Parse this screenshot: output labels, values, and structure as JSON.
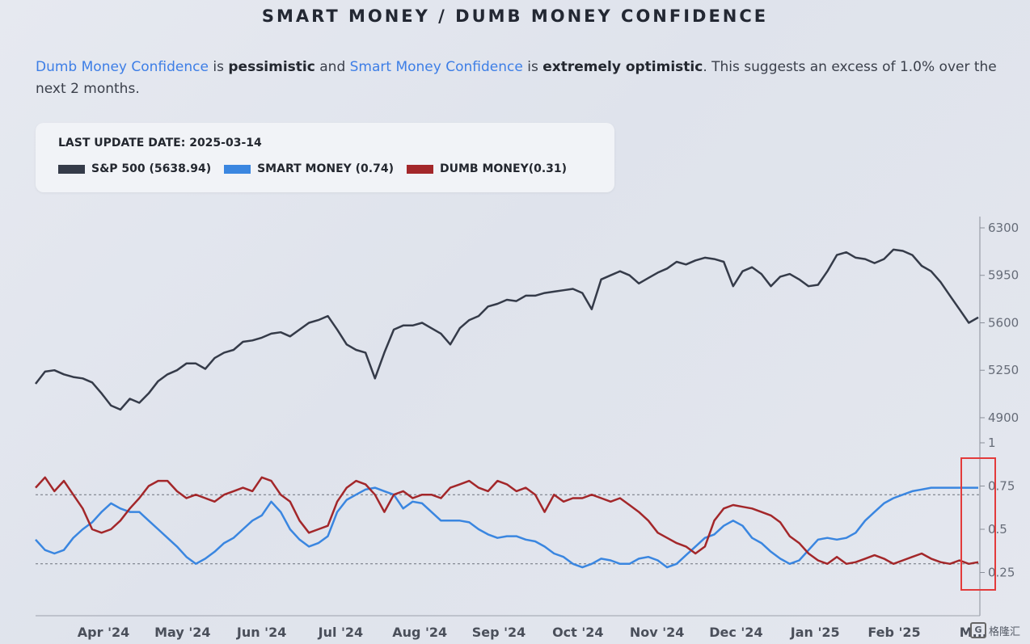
{
  "header": {
    "title": "SMART MONEY / DUMB MONEY CONFIDENCE"
  },
  "summary": {
    "dumb_label": "Dumb Money Confidence",
    "is1": " is ",
    "dumb_state": "pessimistic",
    "and": " and ",
    "smart_label": "Smart Money Confidence",
    "is2": " is ",
    "smart_state": "extremely optimistic",
    "rest": ". This suggests an excess of 1.0% over the next 2 months."
  },
  "legend": {
    "last_update": "LAST UPDATE DATE: 2025-03-14",
    "items": [
      {
        "label": "S&P 500 (5638.94)",
        "color": "#353b49"
      },
      {
        "label": "SMART MONEY (0.74)",
        "color": "#3a86e0"
      },
      {
        "label": "DUMB MONEY(0.31)",
        "color": "#a3272a"
      }
    ]
  },
  "watermark": {
    "text": "格隆汇"
  },
  "chart_data": {
    "type": "line",
    "x_ticks": [
      "Apr '24",
      "May '24",
      "Jun '24",
      "Jul '24",
      "Aug '24",
      "Sep '24",
      "Oct '24",
      "Nov '24",
      "Dec '24",
      "Jan '25",
      "Feb '25",
      "M..."
    ],
    "panels": [
      {
        "name": "price",
        "y_ticks": [
          6300,
          5950,
          5600,
          5250,
          4900
        ],
        "ylim": [
          4870,
          6300
        ],
        "series": [
          {
            "name": "S&P 500",
            "color": "#353b49",
            "x": [
              0,
              0.01,
              0.02,
              0.03,
              0.04,
              0.05,
              0.06,
              0.07,
              0.08,
              0.09,
              0.1,
              0.11,
              0.12,
              0.13,
              0.14,
              0.15,
              0.16,
              0.17,
              0.18,
              0.19,
              0.2,
              0.21,
              0.22,
              0.23,
              0.24,
              0.25,
              0.26,
              0.27,
              0.28,
              0.29,
              0.3,
              0.31,
              0.32,
              0.33,
              0.34,
              0.35,
              0.36,
              0.37,
              0.38,
              0.39,
              0.4,
              0.41,
              0.42,
              0.43,
              0.44,
              0.45,
              0.46,
              0.47,
              0.48,
              0.49,
              0.5,
              0.51,
              0.52,
              0.53,
              0.54,
              0.55,
              0.56,
              0.57,
              0.58,
              0.59,
              0.6,
              0.61,
              0.62,
              0.63,
              0.64,
              0.65,
              0.66,
              0.67,
              0.68,
              0.69,
              0.7,
              0.71,
              0.72,
              0.73,
              0.74,
              0.75,
              0.76,
              0.77,
              0.78,
              0.79,
              0.8,
              0.81,
              0.82,
              0.83,
              0.84,
              0.85,
              0.86,
              0.87,
              0.88,
              0.89,
              0.9,
              0.91,
              0.92,
              0.93,
              0.94,
              0.95,
              0.96,
              0.97,
              0.98,
              0.99,
              1
            ],
            "values": [
              5150,
              5240,
              5250,
              5220,
              5200,
              5190,
              5160,
              5080,
              4990,
              4960,
              5040,
              5010,
              5080,
              5170,
              5220,
              5250,
              5300,
              5300,
              5260,
              5340,
              5380,
              5400,
              5460,
              5470,
              5490,
              5520,
              5530,
              5500,
              5550,
              5600,
              5620,
              5650,
              5550,
              5440,
              5400,
              5380,
              5190,
              5380,
              5550,
              5580,
              5580,
              5600,
              5560,
              5520,
              5440,
              5560,
              5620,
              5650,
              5720,
              5740,
              5770,
              5760,
              5800,
              5800,
              5820,
              5830,
              5840,
              5850,
              5820,
              5700,
              5920,
              5950,
              5980,
              5950,
              5890,
              5930,
              5970,
              6000,
              6050,
              6030,
              6060,
              6080,
              6070,
              6050,
              5870,
              5980,
              6010,
              5960,
              5870,
              5940,
              5960,
              5920,
              5870,
              5880,
              5980,
              6100,
              6120,
              6080,
              6070,
              6040,
              6070,
              6140,
              6130,
              6100,
              6020,
              5980,
              5900,
              5800,
              5700,
              5600,
              5640
            ]
          }
        ]
      },
      {
        "name": "sentiment",
        "y_ticks": [
          1,
          0.75,
          0.5,
          0.25
        ],
        "ylim": [
          0.0,
          1.0
        ],
        "ref_lines": [
          0.7,
          0.3
        ],
        "series": [
          {
            "name": "SMART MONEY",
            "color": "#3a86e0",
            "x": [
              0,
              0.01,
              0.02,
              0.03,
              0.04,
              0.05,
              0.06,
              0.07,
              0.08,
              0.09,
              0.1,
              0.11,
              0.12,
              0.13,
              0.14,
              0.15,
              0.16,
              0.17,
              0.18,
              0.19,
              0.2,
              0.21,
              0.22,
              0.23,
              0.24,
              0.25,
              0.26,
              0.27,
              0.28,
              0.29,
              0.3,
              0.31,
              0.32,
              0.33,
              0.34,
              0.35,
              0.36,
              0.37,
              0.38,
              0.39,
              0.4,
              0.41,
              0.42,
              0.43,
              0.44,
              0.45,
              0.46,
              0.47,
              0.48,
              0.49,
              0.5,
              0.51,
              0.52,
              0.53,
              0.54,
              0.55,
              0.56,
              0.57,
              0.58,
              0.59,
              0.6,
              0.61,
              0.62,
              0.63,
              0.64,
              0.65,
              0.66,
              0.67,
              0.68,
              0.69,
              0.7,
              0.71,
              0.72,
              0.73,
              0.74,
              0.75,
              0.76,
              0.77,
              0.78,
              0.79,
              0.8,
              0.81,
              0.82,
              0.83,
              0.84,
              0.85,
              0.86,
              0.87,
              0.88,
              0.89,
              0.9,
              0.91,
              0.92,
              0.93,
              0.94,
              0.95,
              0.96,
              0.97,
              0.98,
              0.99,
              1
            ],
            "values": [
              0.44,
              0.38,
              0.36,
              0.38,
              0.45,
              0.5,
              0.54,
              0.6,
              0.65,
              0.62,
              0.6,
              0.6,
              0.55,
              0.5,
              0.45,
              0.4,
              0.34,
              0.3,
              0.33,
              0.37,
              0.42,
              0.45,
              0.5,
              0.55,
              0.58,
              0.66,
              0.6,
              0.5,
              0.44,
              0.4,
              0.42,
              0.46,
              0.6,
              0.67,
              0.7,
              0.73,
              0.74,
              0.72,
              0.7,
              0.62,
              0.66,
              0.65,
              0.6,
              0.55,
              0.55,
              0.55,
              0.54,
              0.5,
              0.47,
              0.45,
              0.46,
              0.46,
              0.44,
              0.43,
              0.4,
              0.36,
              0.34,
              0.3,
              0.28,
              0.3,
              0.33,
              0.32,
              0.3,
              0.3,
              0.33,
              0.34,
              0.32,
              0.28,
              0.3,
              0.35,
              0.4,
              0.45,
              0.47,
              0.52,
              0.55,
              0.52,
              0.45,
              0.42,
              0.37,
              0.33,
              0.3,
              0.32,
              0.38,
              0.44,
              0.45,
              0.44,
              0.45,
              0.48,
              0.55,
              0.6,
              0.65,
              0.68,
              0.7,
              0.72,
              0.73,
              0.74,
              0.74,
              0.74,
              0.74,
              0.74,
              0.74
            ]
          },
          {
            "name": "DUMB MONEY",
            "color": "#a3272a",
            "x": [
              0,
              0.01,
              0.02,
              0.03,
              0.04,
              0.05,
              0.06,
              0.07,
              0.08,
              0.09,
              0.1,
              0.11,
              0.12,
              0.13,
              0.14,
              0.15,
              0.16,
              0.17,
              0.18,
              0.19,
              0.2,
              0.21,
              0.22,
              0.23,
              0.24,
              0.25,
              0.26,
              0.27,
              0.28,
              0.29,
              0.3,
              0.31,
              0.32,
              0.33,
              0.34,
              0.35,
              0.36,
              0.37,
              0.38,
              0.39,
              0.4,
              0.41,
              0.42,
              0.43,
              0.44,
              0.45,
              0.46,
              0.47,
              0.48,
              0.49,
              0.5,
              0.51,
              0.52,
              0.53,
              0.54,
              0.55,
              0.56,
              0.57,
              0.58,
              0.59,
              0.6,
              0.61,
              0.62,
              0.63,
              0.64,
              0.65,
              0.66,
              0.67,
              0.68,
              0.69,
              0.7,
              0.71,
              0.72,
              0.73,
              0.74,
              0.75,
              0.76,
              0.77,
              0.78,
              0.79,
              0.8,
              0.81,
              0.82,
              0.83,
              0.84,
              0.85,
              0.86,
              0.87,
              0.88,
              0.89,
              0.9,
              0.91,
              0.92,
              0.93,
              0.94,
              0.95,
              0.96,
              0.97,
              0.98,
              0.99,
              1
            ],
            "values": [
              0.74,
              0.8,
              0.72,
              0.78,
              0.7,
              0.62,
              0.5,
              0.48,
              0.5,
              0.55,
              0.62,
              0.68,
              0.75,
              0.78,
              0.78,
              0.72,
              0.68,
              0.7,
              0.68,
              0.66,
              0.7,
              0.72,
              0.74,
              0.72,
              0.8,
              0.78,
              0.7,
              0.66,
              0.55,
              0.48,
              0.5,
              0.52,
              0.66,
              0.74,
              0.78,
              0.76,
              0.7,
              0.6,
              0.7,
              0.72,
              0.68,
              0.7,
              0.7,
              0.68,
              0.74,
              0.76,
              0.78,
              0.74,
              0.72,
              0.78,
              0.76,
              0.72,
              0.74,
              0.7,
              0.6,
              0.7,
              0.66,
              0.68,
              0.68,
              0.7,
              0.68,
              0.66,
              0.68,
              0.64,
              0.6,
              0.55,
              0.48,
              0.45,
              0.42,
              0.4,
              0.36,
              0.4,
              0.55,
              0.62,
              0.64,
              0.63,
              0.62,
              0.6,
              0.58,
              0.54,
              0.46,
              0.42,
              0.36,
              0.32,
              0.3,
              0.34,
              0.3,
              0.31,
              0.33,
              0.35,
              0.33,
              0.3,
              0.32,
              0.34,
              0.36,
              0.33,
              0.31,
              0.3,
              0.32,
              0.3,
              0.31
            ]
          }
        ]
      }
    ]
  }
}
